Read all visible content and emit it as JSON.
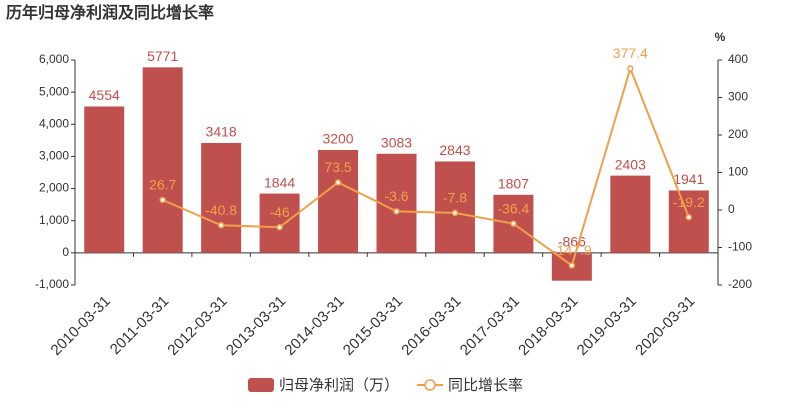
{
  "chart_data": {
    "type": "bar",
    "title": "历年归母净利润及同比增长率",
    "categories": [
      "2010-03-31",
      "2011-03-31",
      "2012-03-31",
      "2013-03-31",
      "2014-03-31",
      "2015-03-31",
      "2016-03-31",
      "2017-03-31",
      "2018-03-31",
      "2019-03-31",
      "2020-03-31"
    ],
    "series": [
      {
        "name": "归母净利润（万）",
        "type": "bar",
        "color": "#c0504d",
        "values": [
          4554,
          5771,
          3418,
          1844,
          3200,
          3083,
          2843,
          1807,
          -866,
          2403,
          1941
        ]
      },
      {
        "name": "同比增长率",
        "type": "line",
        "axis": "y2",
        "color": "#f0a04b",
        "values": [
          null,
          26.7,
          -40.8,
          -46,
          73.5,
          -3.6,
          -7.8,
          -36.4,
          -147.9,
          377.4,
          -19.2
        ]
      }
    ],
    "ylim": [
      -1000,
      6000
    ],
    "yticks": [
      {
        "value": -1000,
        "label": "-1,000"
      },
      0,
      {
        "value": 1000,
        "label": "1,000"
      },
      {
        "value": 2000,
        "label": "2,000"
      },
      {
        "value": 3000,
        "label": "3,000"
      },
      {
        "value": 4000,
        "label": "4,000"
      },
      {
        "value": 5000,
        "label": "5,000"
      },
      {
        "value": 6000,
        "label": "6,000"
      }
    ],
    "y2lim": [
      -200,
      400
    ],
    "y2ticks": [
      -200,
      -100,
      0,
      100,
      200,
      300,
      400
    ],
    "y2label": "%"
  }
}
